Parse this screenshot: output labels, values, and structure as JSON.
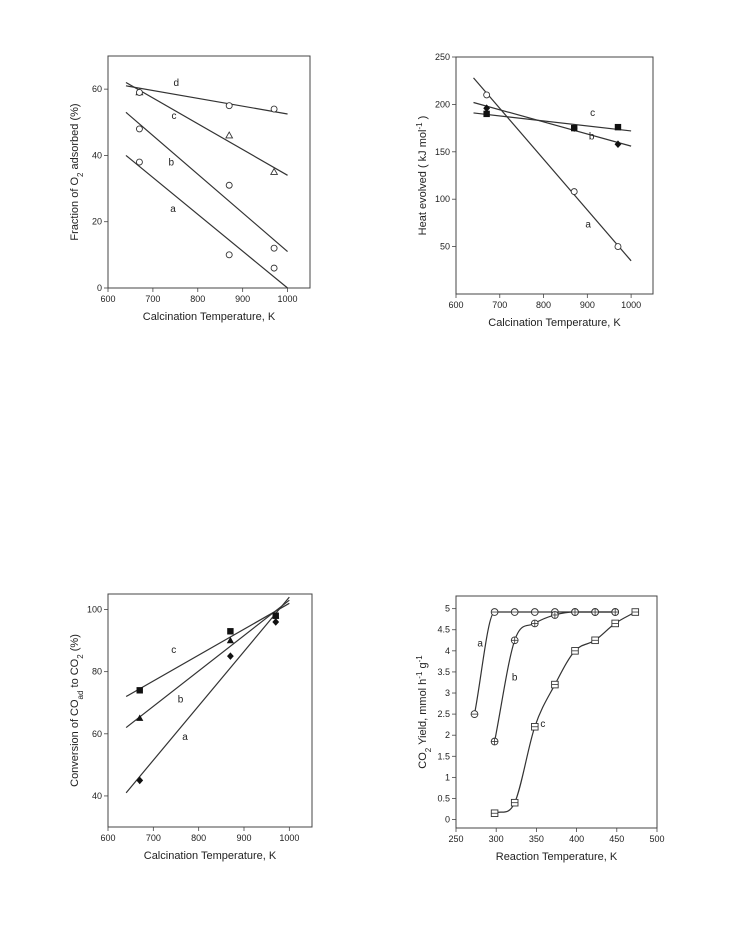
{
  "chart_data": [
    {
      "type": "scatter",
      "xlabel": "Calcination  Temperature, K",
      "ylabel": "Fraction  of  O2  adsorbed (%)",
      "ylabel_parts": [
        "Fraction  of  O",
        "2",
        "  adsorbed (%)"
      ],
      "xlim": [
        600,
        1050
      ],
      "ylim": [
        0,
        70
      ],
      "xticks": [
        600,
        700,
        800,
        900,
        1000
      ],
      "yticks": [
        0,
        20,
        40,
        60
      ],
      "series": [
        {
          "name": "a",
          "marker": "open-circle",
          "x": [
            670,
            870,
            970
          ],
          "y": [
            38,
            10,
            6
          ],
          "fit": [
            [
              640,
              40
            ],
            [
              1000,
              0
            ]
          ]
        },
        {
          "name": "b",
          "marker": "open-circle",
          "x": [
            670,
            870,
            970
          ],
          "y": [
            48,
            31,
            12
          ],
          "fit": [
            [
              640,
              53
            ],
            [
              1000,
              11
            ]
          ]
        },
        {
          "name": "c",
          "marker": "open-triangle",
          "x": [
            670,
            870,
            970
          ],
          "y": [
            59,
            46,
            35
          ],
          "fit": [
            [
              640,
              62
            ],
            [
              1000,
              34
            ]
          ]
        },
        {
          "name": "d",
          "marker": "open-circle",
          "x": [
            670,
            870,
            970
          ],
          "y": [
            59,
            55,
            54
          ],
          "fit": [
            [
              640,
              61
            ],
            [
              1000,
              52.5
            ]
          ]
        }
      ]
    },
    {
      "type": "scatter",
      "xlabel": "Calcination Temperature, K",
      "ylabel": "Heat  evolved  ( kJ mol-1 )",
      "ylabel_parts": [
        "Heat  evolved  ( kJ mol",
        "-1",
        " )"
      ],
      "xlim": [
        600,
        1050
      ],
      "ylim": [
        0,
        250
      ],
      "xticks": [
        600,
        700,
        800,
        900,
        1000
      ],
      "yticks": [
        50,
        100,
        150,
        200,
        250
      ],
      "series": [
        {
          "name": "a",
          "marker": "open-circle",
          "x": [
            670,
            870,
            970
          ],
          "y": [
            210,
            108,
            50
          ],
          "fit": [
            [
              640,
              228
            ],
            [
              1000,
              35
            ]
          ]
        },
        {
          "name": "b",
          "marker": "filled-diamond",
          "x": [
            670,
            870,
            970
          ],
          "y": [
            196,
            175,
            158
          ],
          "fit": [
            [
              640,
              202
            ],
            [
              1000,
              156
            ]
          ]
        },
        {
          "name": "c",
          "marker": "filled-square",
          "x": [
            670,
            870,
            970
          ],
          "y": [
            190,
            175,
            176
          ],
          "fit": [
            [
              640,
              191
            ],
            [
              1000,
              172
            ]
          ]
        }
      ]
    },
    {
      "type": "scatter",
      "xlabel": "Calcination Temperature, K",
      "ylabel": "Conversion  of  COad  to  CO2 (%)",
      "ylabel_parts": [
        "Conversion  of  CO",
        "ad",
        "  to  CO",
        "2",
        " (%)"
      ],
      "xlim": [
        600,
        1050
      ],
      "ylim": [
        30,
        105
      ],
      "xticks": [
        600,
        700,
        800,
        900,
        1000
      ],
      "yticks": [
        40,
        60,
        80,
        100
      ],
      "series": [
        {
          "name": "a",
          "marker": "filled-diamond",
          "x": [
            670,
            870,
            970
          ],
          "y": [
            45,
            85,
            96
          ],
          "fit": [
            [
              640,
              41
            ],
            [
              1000,
              104
            ]
          ]
        },
        {
          "name": "b",
          "marker": "filled-triangle",
          "x": [
            670,
            870,
            970
          ],
          "y": [
            65,
            90,
            98
          ],
          "fit": [
            [
              640,
              62
            ],
            [
              1000,
              103
            ]
          ]
        },
        {
          "name": "c",
          "marker": "filled-square",
          "x": [
            670,
            870,
            970
          ],
          "y": [
            74,
            93,
            98
          ],
          "fit": [
            [
              640,
              72
            ],
            [
              1000,
              102
            ]
          ]
        }
      ]
    },
    {
      "type": "line",
      "xlabel": "Reaction Temperature, K",
      "ylabel": "CO2  Yield, mmol h-1 g-1",
      "ylabel_parts": [
        "CO",
        "2",
        "  Yield, mmol h",
        "-1",
        " g",
        "-1"
      ],
      "xlim": [
        250,
        500
      ],
      "ylim": [
        -0.2,
        5.3
      ],
      "xticks": [
        250,
        300,
        350,
        400,
        450,
        500
      ],
      "yticks": [
        0,
        0.5,
        1,
        1.5,
        2,
        2.5,
        3,
        3.5,
        4,
        4.5,
        5
      ],
      "series": [
        {
          "name": "a",
          "marker": "open-circle-dot",
          "x": [
            273,
            298,
            323,
            348,
            373,
            398,
            423,
            448
          ],
          "y": [
            2.5,
            4.92,
            4.92,
            4.92,
            4.92,
            4.92,
            4.92,
            4.92
          ]
        },
        {
          "name": "b",
          "marker": "circle-plus",
          "x": [
            298,
            323,
            348,
            373,
            398,
            423,
            448
          ],
          "y": [
            1.85,
            4.25,
            4.65,
            4.85,
            4.92,
            4.92,
            4.92
          ]
        },
        {
          "name": "c",
          "marker": "square-dot",
          "x": [
            298,
            323,
            348,
            373,
            398,
            423,
            448,
            473
          ],
          "y": [
            0.15,
            0.4,
            2.2,
            3.2,
            4.0,
            4.25,
            4.65,
            4.92
          ]
        }
      ]
    }
  ]
}
